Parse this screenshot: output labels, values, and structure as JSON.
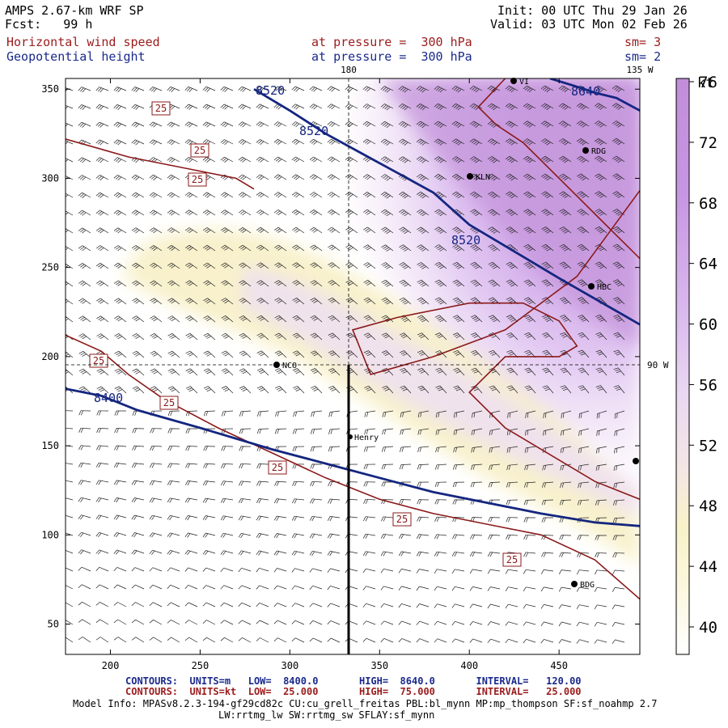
{
  "header": {
    "model": "AMPS 2.67-km WRF SP",
    "fcst": "Fcst:   99 h",
    "init": "Init: 00 UTC Thu 29 Jan 26",
    "valid": "Valid: 03 UTC Mon 02 Feb 26",
    "field1": "Horizontal wind speed",
    "field2": "Geopotential height",
    "level1": "at pressure =  300 hPa",
    "level2": "at pressure =  300 hPa",
    "sm1": "sm= 3",
    "sm2": "sm= 2"
  },
  "map_labels": {
    "lon180": "180",
    "lon135w": "135 W",
    "lon90w": "90 W",
    "stations": [
      {
        "name": "KLN"
      },
      {
        "name": "RDG"
      },
      {
        "name": "HBC"
      },
      {
        "name": "NCO"
      },
      {
        "name": "Henry"
      },
      {
        "name": "BDG"
      },
      {
        "name": "VI"
      }
    ]
  },
  "footer": {
    "row1": "CONTOURS:  UNITS=m   LOW=  8400.0       HIGH=  8640.0       INTERVAL=   120.00",
    "row2": "CONTOURS:  UNITS=kt  LOW=  25.000       HIGH=  75.000       INTERVAL=   25.000",
    "row3": "Model Info: MPASv8.2.3-194-gf29cd82c CU:cu_grell_freitas PBL:bl_mynn MP:mp_thompson SF:sf_noahmp 2.7",
    "row4": "LW:rrtmg_lw SW:rrtmg_sw SFLAY:sf_mynn"
  },
  "colorbar": {
    "unit": "kt",
    "ticks": [
      40,
      44,
      48,
      52,
      56,
      60,
      64,
      68,
      72,
      76
    ]
  },
  "chart_data": {
    "type": "heatmap",
    "title": "Horizontal wind speed / Geopotential height at 300 hPa",
    "x_ticks": [
      200,
      250,
      300,
      350,
      400,
      450
    ],
    "y_ticks": [
      50,
      100,
      150,
      200,
      250,
      300,
      350
    ],
    "xlim": [
      175,
      495
    ],
    "ylim": [
      33,
      356
    ],
    "height_contours": [
      {
        "label": "8400",
        "points": [
          [
            175,
            182
          ],
          [
            195,
            178
          ],
          [
            215,
            170
          ],
          [
            250,
            160
          ],
          [
            290,
            148
          ],
          [
            320,
            140
          ],
          [
            350,
            132
          ],
          [
            380,
            124
          ],
          [
            410,
            118
          ],
          [
            440,
            112
          ],
          [
            470,
            107
          ],
          [
            495,
            105
          ]
        ]
      },
      {
        "label": "8520",
        "points": [
          [
            280,
            350
          ],
          [
            300,
            338
          ],
          [
            320,
            325
          ],
          [
            340,
            314
          ],
          [
            360,
            303
          ],
          [
            380,
            292
          ],
          [
            400,
            274
          ],
          [
            420,
            262
          ],
          [
            450,
            244
          ],
          [
            495,
            218
          ]
        ]
      },
      {
        "label": "8640",
        "points": [
          [
            445,
            356
          ],
          [
            458,
            352
          ],
          [
            470,
            348
          ],
          [
            482,
            345
          ],
          [
            495,
            338
          ]
        ]
      }
    ],
    "wind_contours": [
      {
        "label": "25",
        "points": [
          [
            175,
            212
          ],
          [
            195,
            203
          ],
          [
            210,
            190
          ],
          [
            230,
            176
          ],
          [
            260,
            160
          ],
          [
            290,
            146
          ],
          [
            320,
            132
          ],
          [
            350,
            120
          ],
          [
            380,
            112
          ],
          [
            410,
            106
          ],
          [
            440,
            100
          ],
          [
            470,
            86
          ],
          [
            495,
            64
          ]
        ]
      },
      {
        "label": "25",
        "points": [
          [
            175,
            322
          ],
          [
            210,
            312
          ],
          [
            245,
            305
          ],
          [
            270,
            300
          ],
          [
            280,
            294
          ]
        ]
      },
      {
        "label": "25",
        "points": [
          [
            500,
            300
          ],
          [
            460,
            245
          ],
          [
            420,
            215
          ],
          [
            380,
            200
          ],
          [
            345,
            190
          ],
          [
            335,
            215
          ],
          [
            360,
            222
          ],
          [
            400,
            230
          ],
          [
            430,
            230
          ],
          [
            450,
            220
          ],
          [
            460,
            206
          ],
          [
            450,
            200
          ],
          [
            420,
            200
          ],
          [
            400,
            180
          ],
          [
            420,
            160
          ],
          [
            470,
            130
          ],
          [
            495,
            120
          ]
        ]
      },
      {
        "label": "25",
        "points": [
          [
            420,
            356
          ],
          [
            405,
            340
          ],
          [
            415,
            330
          ],
          [
            430,
            320
          ],
          [
            450,
            300
          ],
          [
            470,
            280
          ],
          [
            485,
            265
          ],
          [
            495,
            255
          ]
        ]
      }
    ],
    "wind_speed_max_kt": 78,
    "contour_labels_height": [
      "8520",
      "8520",
      "8520",
      "8640",
      "8400"
    ],
    "contour_labels_wind": [
      "25",
      "25",
      "25",
      "25",
      "25",
      "25",
      "25",
      "25"
    ]
  }
}
